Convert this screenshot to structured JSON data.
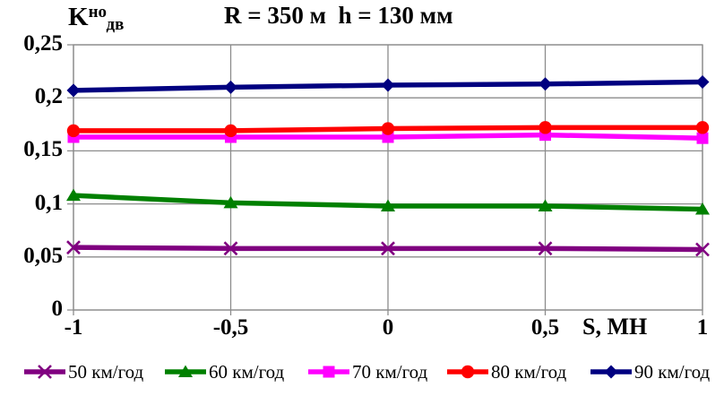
{
  "title": "R = 350 м  h = 130 мм",
  "y_axis_label": {
    "base": "K",
    "sup": "но",
    "sub": "дв"
  },
  "x_axis_label": "S, МН",
  "chart_data": {
    "type": "line",
    "x": [
      -1,
      -0.5,
      0,
      0.5,
      1
    ],
    "x_tick_labels": [
      "-1",
      "-0,5",
      "0",
      "0,5",
      "1"
    ],
    "xlim": [
      -1,
      1
    ],
    "y_ticks": [
      0,
      0.05,
      0.1,
      0.15,
      0.2,
      0.25
    ],
    "y_tick_labels": [
      "0",
      "0,05",
      "0,1",
      "0,15",
      "0,2",
      "0,25"
    ],
    "ylim": [
      0,
      0.25
    ],
    "grid": true,
    "grid_color": "#8c8c8c",
    "legend_position": "bottom",
    "series": [
      {
        "name": "50 км/год",
        "color": "#800080",
        "marker": "x",
        "values": [
          0.059,
          0.058,
          0.058,
          0.058,
          0.057
        ]
      },
      {
        "name": "60 км/год",
        "color": "#008000",
        "marker": "triangle",
        "values": [
          0.108,
          0.101,
          0.098,
          0.098,
          0.095
        ]
      },
      {
        "name": "70 км/год",
        "color": "#ff00ff",
        "marker": "square",
        "values": [
          0.163,
          0.163,
          0.163,
          0.165,
          0.162
        ]
      },
      {
        "name": "80 км/год",
        "color": "#ff0000",
        "marker": "circle",
        "values": [
          0.169,
          0.169,
          0.171,
          0.172,
          0.172
        ]
      },
      {
        "name": "90 км/год",
        "color": "#000080",
        "marker": "diamond",
        "values": [
          0.207,
          0.21,
          0.212,
          0.213,
          0.215
        ]
      }
    ]
  }
}
